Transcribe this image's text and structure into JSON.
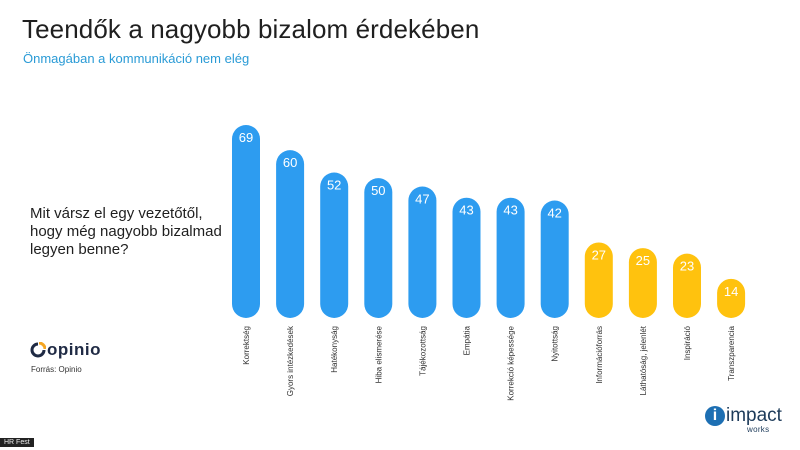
{
  "header": {
    "title": "Teendők a nagyobb bizalom érdekében",
    "subtitle": "Önmagában a kommunikáció nem elég"
  },
  "question": "Mit vársz el egy vezetőtől, hogy még nagyobb bizalmad legyen benne?",
  "logo": {
    "name": "opinio",
    "icon": "opinio-logo-icon"
  },
  "source": "Forrás: Opinio",
  "brand": {
    "word": "impact",
    "sub": "works"
  },
  "badge": "HR Fest",
  "colors": {
    "primary": "#2d9cf0",
    "secondary": "#ffc20e"
  },
  "chart_data": {
    "type": "bar",
    "categories": [
      "Korrektség",
      "Gyors intézkedések",
      "Hatékonyság",
      "Hiba elismerése",
      "Tájékozottság",
      "Empátia",
      "Korrekció képessége",
      "Nyitottság",
      "Információforrás",
      "Láthatóság, jelenlét",
      "Inspiráció",
      "Transzparencia"
    ],
    "values": [
      69,
      60,
      52,
      50,
      47,
      43,
      43,
      42,
      27,
      25,
      23,
      14
    ],
    "value_labels": [
      "69",
      "60",
      "52",
      "50",
      "47",
      "43",
      "43",
      "42",
      "27",
      "25",
      "23",
      "14"
    ],
    "bar_colors": [
      "#2d9cf0",
      "#2d9cf0",
      "#2d9cf0",
      "#2d9cf0",
      "#2d9cf0",
      "#2d9cf0",
      "#2d9cf0",
      "#2d9cf0",
      "#ffc20e",
      "#ffc20e",
      "#ffc20e",
      "#ffc20e"
    ],
    "ylim": [
      0,
      69
    ],
    "grid": false,
    "legend": "none"
  }
}
